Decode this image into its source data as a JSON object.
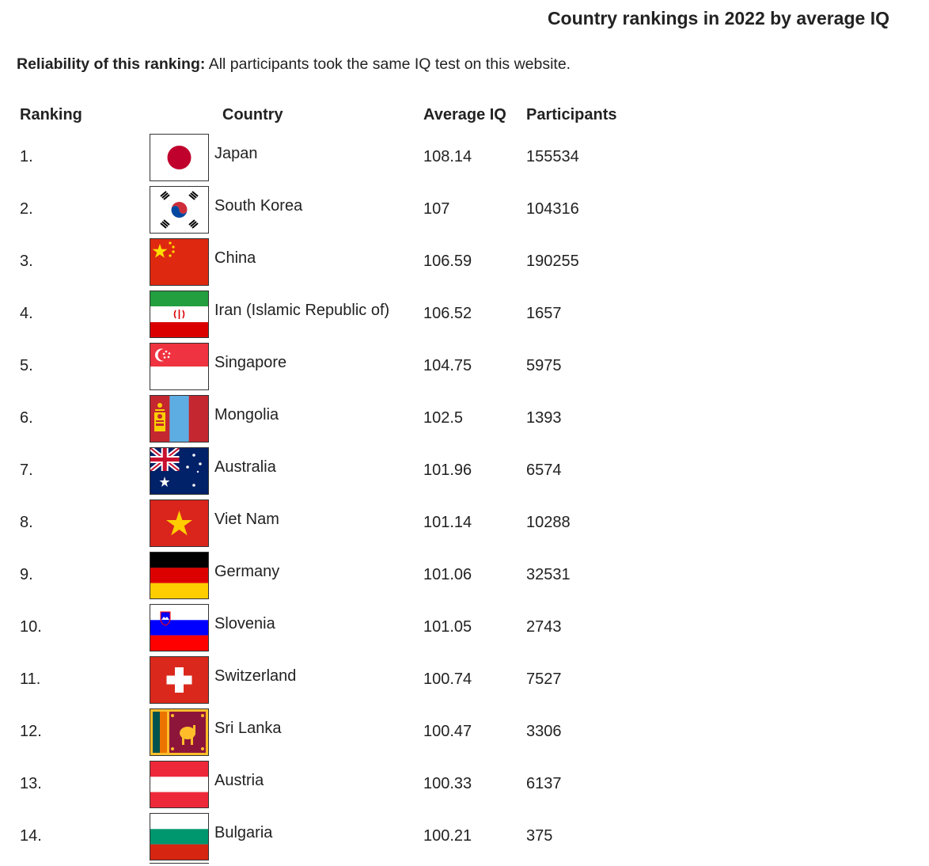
{
  "title": "Country rankings in 2022 by average IQ",
  "reliability": {
    "label": "Reliability of this ranking:",
    "text": " All participants took the same IQ test on this website."
  },
  "headers": {
    "ranking": "Ranking",
    "country": "Country",
    "average_iq": "Average IQ",
    "participants": "Participants"
  },
  "rows": [
    {
      "rank": "1.",
      "country": "Japan",
      "iq": "108.14",
      "participants": "155534",
      "flag": "japan-flag"
    },
    {
      "rank": "2.",
      "country": "South Korea",
      "iq": "107",
      "participants": "104316",
      "flag": "south-korea-flag"
    },
    {
      "rank": "3.",
      "country": "China",
      "iq": "106.59",
      "participants": "190255",
      "flag": "china-flag"
    },
    {
      "rank": "4.",
      "country": "Iran (Islamic Republic of)",
      "iq": "106.52",
      "participants": "1657",
      "flag": "iran-flag"
    },
    {
      "rank": "5.",
      "country": "Singapore",
      "iq": "104.75",
      "participants": "5975",
      "flag": "singapore-flag"
    },
    {
      "rank": "6.",
      "country": "Mongolia",
      "iq": "102.5",
      "participants": "1393",
      "flag": "mongolia-flag"
    },
    {
      "rank": "7.",
      "country": "Australia",
      "iq": "101.96",
      "participants": "6574",
      "flag": "australia-flag"
    },
    {
      "rank": "8.",
      "country": "Viet Nam",
      "iq": "101.14",
      "participants": "10288",
      "flag": "vietnam-flag"
    },
    {
      "rank": "9.",
      "country": "Germany",
      "iq": "101.06",
      "participants": "32531",
      "flag": "germany-flag"
    },
    {
      "rank": "10.",
      "country": "Slovenia",
      "iq": "101.05",
      "participants": "2743",
      "flag": "slovenia-flag"
    },
    {
      "rank": "11.",
      "country": "Switzerland",
      "iq": "100.74",
      "participants": "7527",
      "flag": "switzerland-flag"
    },
    {
      "rank": "12.",
      "country": "Sri Lanka",
      "iq": "100.47",
      "participants": "3306",
      "flag": "sri-lanka-flag"
    },
    {
      "rank": "13.",
      "country": "Austria",
      "iq": "100.33",
      "participants": "6137",
      "flag": "austria-flag"
    },
    {
      "rank": "14.",
      "country": "Bulgaria",
      "iq": "100.21",
      "participants": "375",
      "flag": "bulgaria-flag"
    }
  ]
}
